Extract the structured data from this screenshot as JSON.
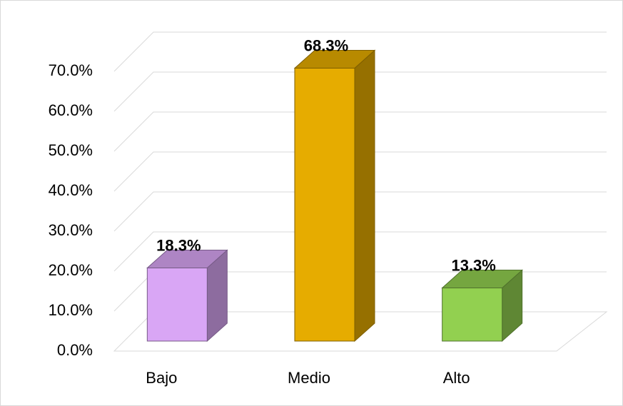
{
  "chart_data": {
    "type": "bar3d",
    "categories": [
      "Bajo",
      "Medio",
      "Alto"
    ],
    "values": [
      18.3,
      68.3,
      13.3
    ],
    "value_labels": [
      "18.3%",
      "68.3%",
      "13.3%"
    ],
    "colors": [
      "#d9a6f5",
      "#e6ac00",
      "#92d050"
    ],
    "ylim": [
      0,
      70
    ],
    "yticks": [
      {
        "value": 0,
        "label": "0.0%"
      },
      {
        "value": 10,
        "label": "10.0%"
      },
      {
        "value": 20,
        "label": "20.0%"
      },
      {
        "value": 30,
        "label": "30.0%"
      },
      {
        "value": 40,
        "label": "40.0%"
      },
      {
        "value": 50,
        "label": "50.0%"
      },
      {
        "value": 60,
        "label": "60.0%"
      },
      {
        "value": 70,
        "label": "70.0%"
      }
    ],
    "grid": true
  }
}
